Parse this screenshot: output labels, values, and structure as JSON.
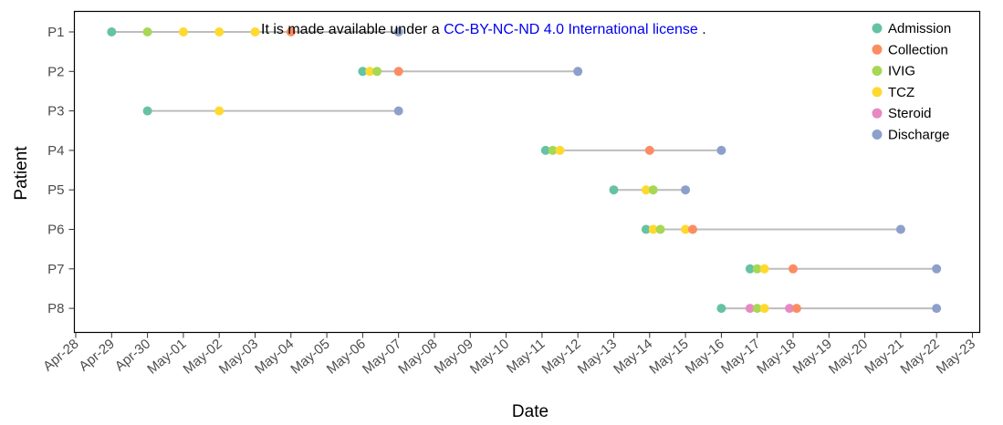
{
  "notice": {
    "prefix": "It is made available under a ",
    "link": "CC-BY-NC-ND 4.0 International license",
    "suffix": " ."
  },
  "chart_data": {
    "type": "scatter",
    "xlabel": "Date",
    "ylabel": "Patient",
    "x_ticks": [
      "Apr-28",
      "Apr-29",
      "Apr-30",
      "May-01",
      "May-02",
      "May-03",
      "May-04",
      "May-05",
      "May-06",
      "May-07",
      "May-08",
      "May-09",
      "May-10",
      "May-11",
      "May-12",
      "May-13",
      "May-14",
      "May-15",
      "May-16",
      "May-17",
      "May-18",
      "May-19",
      "May-20",
      "May-21",
      "May-22",
      "May-23"
    ],
    "y_categories": [
      "P1",
      "P2",
      "P3",
      "P4",
      "P5",
      "P6",
      "P7",
      "P8"
    ],
    "legend_position": "top-right",
    "grid": false,
    "line_color": "#bdbdbd",
    "series": [
      {
        "name": "Admission",
        "color": "#66c2a5"
      },
      {
        "name": "Collection",
        "color": "#fc8d62"
      },
      {
        "name": "IVIG",
        "color": "#a6d854"
      },
      {
        "name": "TCZ",
        "color": "#ffd92f"
      },
      {
        "name": "Steroid",
        "color": "#e78ac3"
      },
      {
        "name": "Discharge",
        "color": "#8da0cb"
      }
    ],
    "patients": [
      {
        "id": "P1",
        "events": [
          {
            "date": "Apr-29",
            "type": "Admission"
          },
          {
            "date": "Apr-30",
            "type": "IVIG"
          },
          {
            "date": "May-01",
            "type": "TCZ"
          },
          {
            "date": "May-02",
            "type": "TCZ"
          },
          {
            "date": "May-03",
            "type": "TCZ"
          },
          {
            "date": "May-04",
            "type": "Collection"
          },
          {
            "date": "May-07",
            "type": "Discharge"
          }
        ]
      },
      {
        "id": "P2",
        "events": [
          {
            "date": "May-06",
            "type": "Admission"
          },
          {
            "date": "May-06.2",
            "type": "TCZ"
          },
          {
            "date": "May-06.4",
            "type": "IVIG"
          },
          {
            "date": "May-07",
            "type": "Collection"
          },
          {
            "date": "May-12",
            "type": "Discharge"
          }
        ]
      },
      {
        "id": "P3",
        "events": [
          {
            "date": "Apr-30",
            "type": "Admission"
          },
          {
            "date": "May-02",
            "type": "TCZ"
          },
          {
            "date": "May-07",
            "type": "Discharge"
          }
        ]
      },
      {
        "id": "P4",
        "events": [
          {
            "date": "May-11.1",
            "type": "Admission"
          },
          {
            "date": "May-11.3",
            "type": "IVIG"
          },
          {
            "date": "May-11.5",
            "type": "TCZ"
          },
          {
            "date": "May-14",
            "type": "Collection"
          },
          {
            "date": "May-16",
            "type": "Discharge"
          }
        ]
      },
      {
        "id": "P5",
        "events": [
          {
            "date": "May-13",
            "type": "Admission"
          },
          {
            "date": "May-13.9",
            "type": "TCZ"
          },
          {
            "date": "May-14.1",
            "type": "IVIG"
          },
          {
            "date": "May-15",
            "type": "Discharge"
          }
        ]
      },
      {
        "id": "P6",
        "events": [
          {
            "date": "May-13.9",
            "type": "Admission"
          },
          {
            "date": "May-14.1",
            "type": "TCZ"
          },
          {
            "date": "May-14.3",
            "type": "IVIG"
          },
          {
            "date": "May-15",
            "type": "TCZ"
          },
          {
            "date": "May-15.2",
            "type": "Collection"
          },
          {
            "date": "May-21",
            "type": "Discharge"
          }
        ]
      },
      {
        "id": "P7",
        "events": [
          {
            "date": "May-16.8",
            "type": "Admission"
          },
          {
            "date": "May-17",
            "type": "IVIG"
          },
          {
            "date": "May-17.2",
            "type": "TCZ"
          },
          {
            "date": "May-18",
            "type": "Collection"
          },
          {
            "date": "May-22",
            "type": "Discharge"
          }
        ]
      },
      {
        "id": "P8",
        "events": [
          {
            "date": "May-16",
            "type": "Admission"
          },
          {
            "date": "May-16.8",
            "type": "Steroid"
          },
          {
            "date": "May-17",
            "type": "IVIG"
          },
          {
            "date": "May-17.2",
            "type": "TCZ"
          },
          {
            "date": "May-17.9",
            "type": "Steroid"
          },
          {
            "date": "May-18.1",
            "type": "Collection"
          },
          {
            "date": "May-22",
            "type": "Discharge"
          }
        ]
      }
    ]
  }
}
